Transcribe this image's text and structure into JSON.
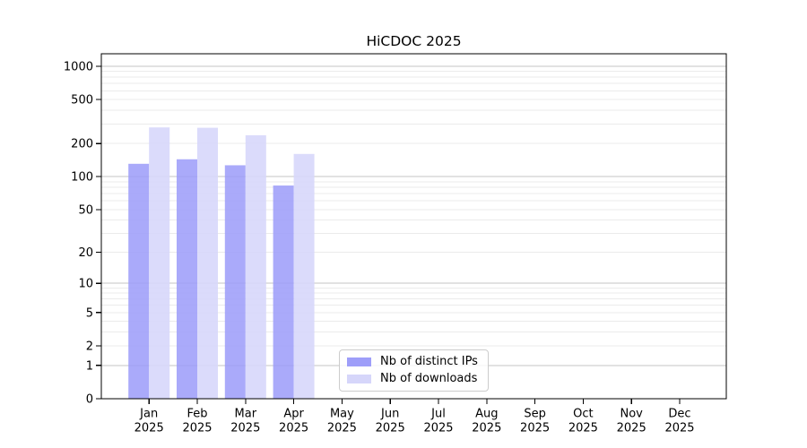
{
  "chart_data": {
    "type": "bar",
    "title": "HiCDOC 2025",
    "y_scale": "log10(value+1)",
    "year": "2025",
    "months": [
      "Jan",
      "Feb",
      "Mar",
      "Apr",
      "May",
      "Jun",
      "Jul",
      "Aug",
      "Sep",
      "Oct",
      "Nov",
      "Dec"
    ],
    "categories": [
      "Jan 2025",
      "Feb 2025",
      "Mar 2025",
      "Apr 2025",
      "May 2025",
      "Jun 2025",
      "Jul 2025",
      "Aug 2025",
      "Sep 2025",
      "Oct 2025",
      "Nov 2025",
      "Dec 2025"
    ],
    "series": [
      {
        "name": "Nb of distinct IPs",
        "color": "#9e9ef9",
        "values": [
          131,
          144,
          127,
          83,
          0,
          0,
          0,
          0,
          0,
          0,
          0,
          0
        ]
      },
      {
        "name": "Nb of downloads",
        "color": "#d6d6fa",
        "values": [
          280,
          278,
          238,
          161,
          0,
          0,
          0,
          0,
          0,
          0,
          0,
          0
        ]
      }
    ],
    "bar_alpha": 0.88,
    "y_ticks": [
      0,
      1,
      2,
      5,
      10,
      20,
      50,
      100,
      200,
      500,
      1000
    ],
    "ylim": [
      0,
      1000
    ],
    "grid": true,
    "legend_position": "inside-bottom-center",
    "colors": {
      "major_grid": "#c4c4c4",
      "minor_grid": "#ebebeb",
      "axis": "#000000",
      "text": "#000000"
    }
  }
}
